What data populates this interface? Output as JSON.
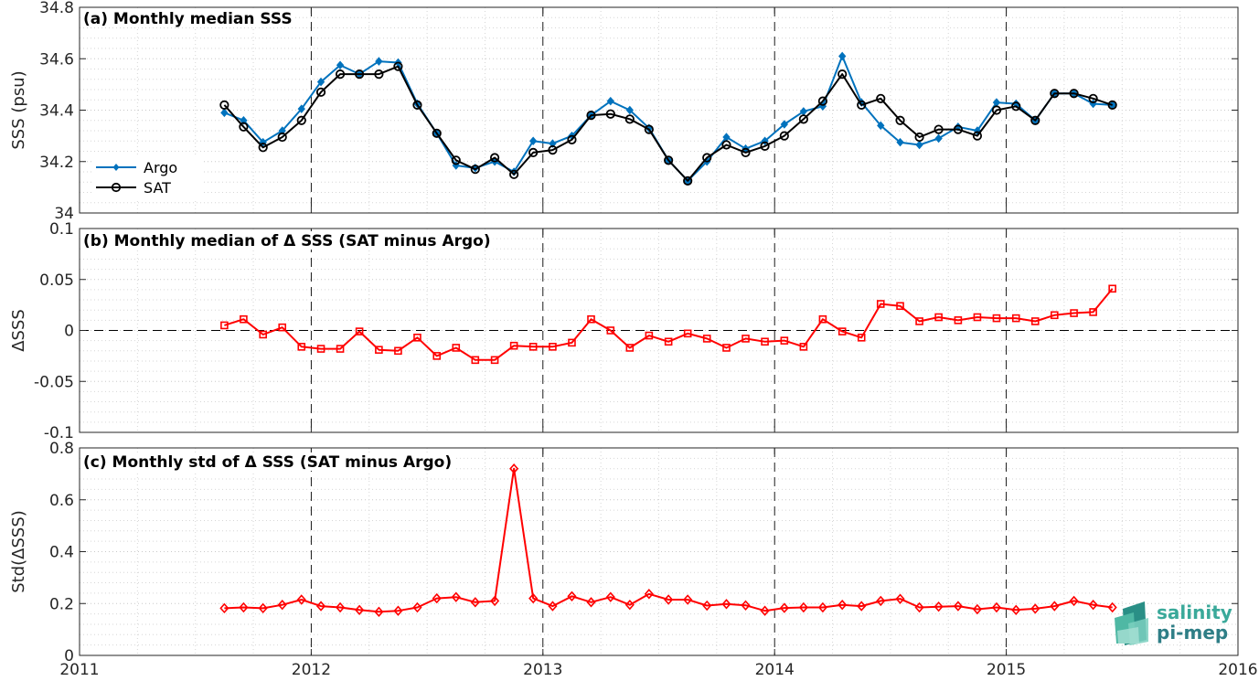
{
  "chart_data": [
    {
      "type": "line",
      "title": "(a) Monthly median SSS",
      "ylabel": "SSS (psu)",
      "xlim": [
        2011,
        2016
      ],
      "ylim": [
        34,
        34.8
      ],
      "yticks": [
        "34",
        "34.2",
        "34.4",
        "34.6",
        "34.8"
      ],
      "legend_position": "bottom-left",
      "series": [
        {
          "name": "Argo",
          "color": "#0072bd",
          "marker": "filled-diamond",
          "x": [
            2011.625,
            2011.708,
            2011.792,
            2011.875,
            2011.958,
            2012.042,
            2012.125,
            2012.208,
            2012.292,
            2012.375,
            2012.458,
            2012.542,
            2012.625,
            2012.708,
            2012.792,
            2012.875,
            2012.958,
            2013.042,
            2013.125,
            2013.208,
            2013.292,
            2013.375,
            2013.458,
            2013.542,
            2013.625,
            2013.708,
            2013.792,
            2013.875,
            2013.958,
            2014.042,
            2014.125,
            2014.208,
            2014.292,
            2014.375,
            2014.458,
            2014.542,
            2014.625,
            2014.708,
            2014.792,
            2014.875,
            2014.958,
            2015.042,
            2015.125,
            2015.208,
            2015.292,
            2015.375,
            2015.458
          ],
          "values": [
            34.39,
            34.36,
            34.275,
            34.32,
            34.405,
            34.51,
            34.575,
            34.54,
            34.59,
            34.585,
            34.425,
            34.31,
            34.185,
            34.175,
            34.2,
            34.16,
            34.28,
            34.27,
            34.3,
            34.38,
            34.435,
            34.4,
            34.33,
            34.205,
            34.125,
            34.2,
            34.295,
            34.25,
            34.28,
            34.345,
            34.395,
            34.415,
            34.61,
            34.43,
            34.34,
            34.275,
            34.265,
            34.29,
            34.335,
            34.32,
            34.43,
            34.425,
            34.36,
            34.465,
            34.465,
            34.425,
            34.42
          ]
        },
        {
          "name": "SAT",
          "color": "#000000",
          "marker": "open-circle",
          "x": [
            2011.625,
            2011.708,
            2011.792,
            2011.875,
            2011.958,
            2012.042,
            2012.125,
            2012.208,
            2012.292,
            2012.375,
            2012.458,
            2012.542,
            2012.625,
            2012.708,
            2012.792,
            2012.875,
            2012.958,
            2013.042,
            2013.125,
            2013.208,
            2013.292,
            2013.375,
            2013.458,
            2013.542,
            2013.625,
            2013.708,
            2013.792,
            2013.875,
            2013.958,
            2014.042,
            2014.125,
            2014.208,
            2014.292,
            2014.375,
            2014.458,
            2014.542,
            2014.625,
            2014.708,
            2014.792,
            2014.875,
            2014.958,
            2015.042,
            2015.125,
            2015.208,
            2015.292,
            2015.375,
            2015.458
          ],
          "values": [
            34.42,
            34.335,
            34.255,
            34.295,
            34.36,
            34.47,
            34.54,
            34.54,
            34.54,
            34.57,
            34.42,
            34.31,
            34.205,
            34.17,
            34.215,
            34.15,
            34.235,
            34.245,
            34.285,
            34.38,
            34.385,
            34.365,
            34.325,
            34.205,
            34.125,
            34.215,
            34.265,
            34.235,
            34.26,
            34.3,
            34.365,
            34.435,
            34.54,
            34.42,
            34.445,
            34.36,
            34.295,
            34.325,
            34.325,
            34.3,
            34.4,
            34.415,
            34.36,
            34.465,
            34.465,
            34.445,
            34.42
          ]
        }
      ]
    },
    {
      "type": "line",
      "title": "(b) Monthly median of Δ SSS (SAT minus Argo)",
      "ylabel": "ΔSSS",
      "xlim": [
        2011,
        2016
      ],
      "ylim": [
        -0.1,
        0.1
      ],
      "yticks": [
        "-0.1",
        "-0.05",
        "0",
        "0.05",
        "0.1"
      ],
      "zero_line": "dashed",
      "series": [
        {
          "color": "#ff0000",
          "marker": "open-square",
          "x": [
            2011.625,
            2011.708,
            2011.792,
            2011.875,
            2011.958,
            2012.042,
            2012.125,
            2012.208,
            2012.292,
            2012.375,
            2012.458,
            2012.542,
            2012.625,
            2012.708,
            2012.792,
            2012.875,
            2012.958,
            2013.042,
            2013.125,
            2013.208,
            2013.292,
            2013.375,
            2013.458,
            2013.542,
            2013.625,
            2013.708,
            2013.792,
            2013.875,
            2013.958,
            2014.042,
            2014.125,
            2014.208,
            2014.292,
            2014.375,
            2014.458,
            2014.542,
            2014.625,
            2014.708,
            2014.792,
            2014.875,
            2014.958,
            2015.042,
            2015.125,
            2015.208,
            2015.292,
            2015.375,
            2015.458
          ],
          "values": [
            0.005,
            0.011,
            -0.004,
            0.003,
            -0.016,
            -0.018,
            -0.018,
            -0.001,
            -0.019,
            -0.02,
            -0.007,
            -0.025,
            -0.017,
            -0.029,
            -0.029,
            -0.015,
            -0.016,
            -0.016,
            -0.012,
            0.011,
            0,
            -0.017,
            -0.005,
            -0.011,
            -0.003,
            -0.008,
            -0.017,
            -0.008,
            -0.011,
            -0.01,
            -0.016,
            0.011,
            -0.001,
            -0.007,
            0.026,
            0.024,
            0.009,
            0.013,
            0.01,
            0.013,
            0.012,
            0.012,
            0.009,
            0.015,
            0.017,
            0.018,
            0.041
          ]
        }
      ]
    },
    {
      "type": "line",
      "title": "(c) Monthly std of Δ SSS (SAT minus Argo)",
      "ylabel": "Std(ΔSSS)",
      "xlim": [
        2011,
        2016
      ],
      "ylim": [
        0,
        0.8
      ],
      "yticks": [
        "0",
        "0.2",
        "0.4",
        "0.6",
        "0.8"
      ],
      "xticks": [
        "2011",
        "2012",
        "2013",
        "2014",
        "2015",
        "2016"
      ],
      "series": [
        {
          "color": "#ff0000",
          "marker": "open-diamond",
          "x": [
            2011.625,
            2011.708,
            2011.792,
            2011.875,
            2011.958,
            2012.042,
            2012.125,
            2012.208,
            2012.292,
            2012.375,
            2012.458,
            2012.542,
            2012.625,
            2012.708,
            2012.792,
            2012.875,
            2012.958,
            2013.042,
            2013.125,
            2013.208,
            2013.292,
            2013.375,
            2013.458,
            2013.542,
            2013.625,
            2013.708,
            2013.792,
            2013.875,
            2013.958,
            2014.042,
            2014.125,
            2014.208,
            2014.292,
            2014.375,
            2014.458,
            2014.542,
            2014.625,
            2014.708,
            2014.792,
            2014.875,
            2014.958,
            2015.042,
            2015.125,
            2015.208,
            2015.292,
            2015.375,
            2015.458
          ],
          "values": [
            0.182,
            0.185,
            0.182,
            0.195,
            0.215,
            0.19,
            0.185,
            0.175,
            0.168,
            0.172,
            0.185,
            0.22,
            0.225,
            0.205,
            0.21,
            0.72,
            0.22,
            0.19,
            0.228,
            0.205,
            0.225,
            0.195,
            0.237,
            0.215,
            0.215,
            0.192,
            0.198,
            0.193,
            0.172,
            0.183,
            0.185,
            0.185,
            0.195,
            0.19,
            0.21,
            0.218,
            0.185,
            0.188,
            0.19,
            0.178,
            0.185,
            0.175,
            0.18,
            0.19,
            0.21,
            0.195,
            0.185
          ]
        }
      ]
    }
  ],
  "logo": {
    "line1": "salinity",
    "line2": "pi-mep"
  }
}
